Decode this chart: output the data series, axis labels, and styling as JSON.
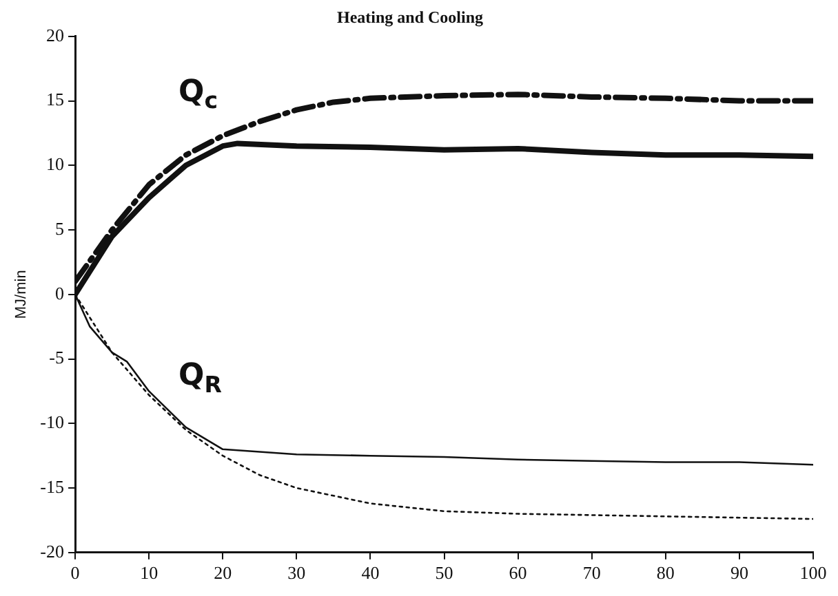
{
  "chart_data": {
    "type": "line",
    "title": "Heating and Cooling",
    "ylabel": "MJ/min",
    "xlim": [
      0,
      100
    ],
    "xticks": [
      0,
      10,
      20,
      30,
      40,
      50,
      60,
      70,
      80,
      90,
      100
    ],
    "ylim": [
      -20,
      20
    ],
    "yticks": [
      -20,
      -15,
      -10,
      -5,
      0,
      5,
      10,
      15,
      20
    ],
    "grid": false,
    "legend": false,
    "marker": "none",
    "series": [
      {
        "color": "#111111",
        "line_style": "solid",
        "x": [
          0,
          5,
          10,
          15,
          20,
          22,
          30,
          40,
          50,
          60,
          70,
          80,
          90,
          100
        ],
        "values": [
          0,
          4.5,
          7.5,
          10,
          11.5,
          11.7,
          11.5,
          11.4,
          11.2,
          11.3,
          11,
          10.8,
          10.8,
          10.7
        ]
      },
      {
        "color": "#111111",
        "line_style": "dashed",
        "x": [
          0,
          5,
          10,
          15,
          20,
          25,
          30,
          35,
          40,
          50,
          60,
          70,
          80,
          90,
          100
        ],
        "values": [
          1,
          5,
          8.5,
          10.8,
          12.3,
          13.4,
          14.3,
          14.9,
          15.2,
          15.4,
          15.5,
          15.3,
          15.2,
          15,
          15
        ]
      },
      {
        "color": "#111111",
        "line_style": "solid",
        "x": [
          0,
          2,
          5,
          7,
          10,
          15,
          20,
          30,
          40,
          50,
          60,
          70,
          80,
          90,
          100
        ],
        "values": [
          0,
          -2.5,
          -4.5,
          -5.2,
          -7.5,
          -10.3,
          -12,
          -12.4,
          -12.5,
          -12.6,
          -12.8,
          -12.9,
          -13,
          -13,
          -13.2
        ]
      },
      {
        "color": "#111111",
        "line_style": "dotted",
        "x": [
          0,
          5,
          10,
          15,
          20,
          25,
          30,
          40,
          50,
          60,
          70,
          80,
          90,
          100
        ],
        "values": [
          0,
          -4.5,
          -7.8,
          -10.5,
          -12.5,
          -14,
          -15,
          -16.2,
          -16.8,
          -17,
          -17.1,
          -17.2,
          -17.3,
          -17.4
        ]
      }
    ],
    "annotations": [
      "Q$_{c}$",
      "Q$_{R}$"
    ]
  }
}
